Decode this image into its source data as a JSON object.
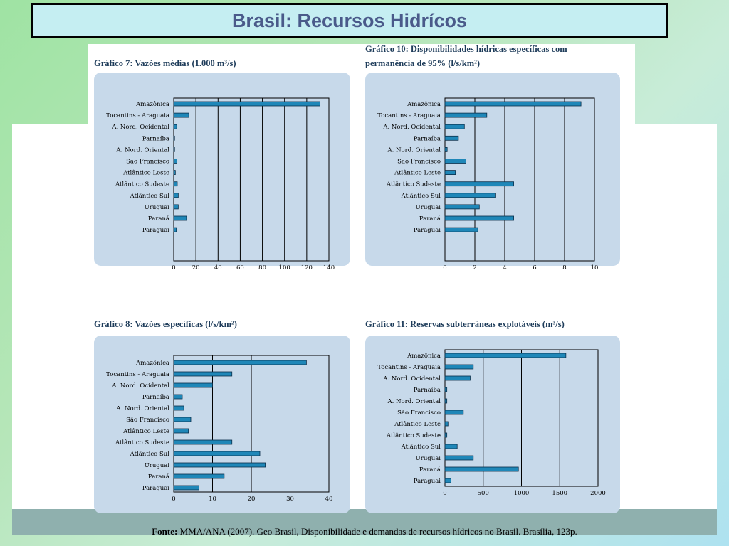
{
  "title": "Brasil: Recursos Hidrícos",
  "source": {
    "label": "Fonte:",
    "text": "MMA/ANA (2007). Geo Brasil,  Disponibilidade e demandas de recursos hídricos no Brasil. Brasília, 123p."
  },
  "colors": {
    "bar_fill": "#1f87b8",
    "bar_stroke": "#0b2f4a",
    "card_bg": "#c7d9ea",
    "title_text": "#4a5a8a"
  },
  "chart_data": [
    {
      "type": "bar",
      "orientation": "horizontal",
      "title": "Gráfico 7: Vazões médias (1.000 m³/s)",
      "categories": [
        "Amazônica",
        "Tocantins - Araguaia",
        "A. Nord. Ocidental",
        "Parnaíba",
        "A. Nord. Oriental",
        "São Francisco",
        "Atlântico Leste",
        "Atlântico Sudeste",
        "Atlântico Sul",
        "Uruguai",
        "Paraná",
        "Paraguai"
      ],
      "values": [
        132,
        13.6,
        2.7,
        0.8,
        0.8,
        2.9,
        1.5,
        3.2,
        4.1,
        4.1,
        11.5,
        2.4
      ],
      "xlim": [
        0,
        140
      ],
      "ticks": [
        0,
        20,
        40,
        60,
        80,
        100,
        120,
        140
      ],
      "grid": true
    },
    {
      "type": "bar",
      "orientation": "horizontal",
      "title": "Gráfico 10: Disponibilidades hídricas específicas com permanência de 95% (l/s/km²)",
      "title_lines": [
        "Gráfico 10: Disponibilidades hídricas específicas com",
        "permanência de 95% (l/s/km²)"
      ],
      "categories": [
        "Amazônica",
        "Tocantins - Araguaia",
        "A. Nord. Ocidental",
        "Parnaíba",
        "A. Nord. Oriental",
        "São Francisco",
        "Atlântico Leste",
        "Atlântico Sudeste",
        "Atlântico Sul",
        "Uruguai",
        "Paraná",
        "Paraguai"
      ],
      "values": [
        9.1,
        2.8,
        1.3,
        0.9,
        0.15,
        1.4,
        0.7,
        4.6,
        3.4,
        2.3,
        4.6,
        2.2
      ],
      "xlim": [
        0,
        10
      ],
      "ticks": [
        0,
        2,
        4,
        6,
        8,
        10
      ],
      "grid": true
    },
    {
      "type": "bar",
      "orientation": "horizontal",
      "title": "Gráfico 8: Vazões específicas (l/s/km²)",
      "categories": [
        "Amazônica",
        "Tocantins - Araguaia",
        "A. Nord. Ocidental",
        "Parnaíba",
        "A. Nord. Oriental",
        "São Francisco",
        "Atlântico Leste",
        "Atlântico Sudeste",
        "Atlântico Sul",
        "Uruguai",
        "Paraná",
        "Paraguai"
      ],
      "values": [
        34.2,
        15,
        10,
        2.2,
        2.6,
        4.4,
        3.8,
        15,
        22.2,
        23.6,
        13,
        6.5
      ],
      "xlim": [
        0,
        40
      ],
      "ticks": [
        0,
        10,
        20,
        30,
        40
      ],
      "grid": true
    },
    {
      "type": "bar",
      "orientation": "horizontal",
      "title": "Gráfico 11: Reservas subterrâneas explotáveis (m³/s)",
      "categories": [
        "Amazônica",
        "Tocantins - Araguaia",
        "A. Nord. Ocidental",
        "Parnaíba",
        "A. Nord. Oriental",
        "São Francisco",
        "Atlântico Leste",
        "Atlântico Sudeste",
        "Atlântico Sul",
        "Uruguai",
        "Paraná",
        "Paraguai"
      ],
      "values": [
        1580,
        370,
        330,
        25,
        25,
        240,
        40,
        25,
        160,
        370,
        960,
        80
      ],
      "xlim": [
        0,
        2000
      ],
      "ticks": [
        0,
        500,
        1000,
        1500,
        2000
      ],
      "grid": true
    }
  ]
}
